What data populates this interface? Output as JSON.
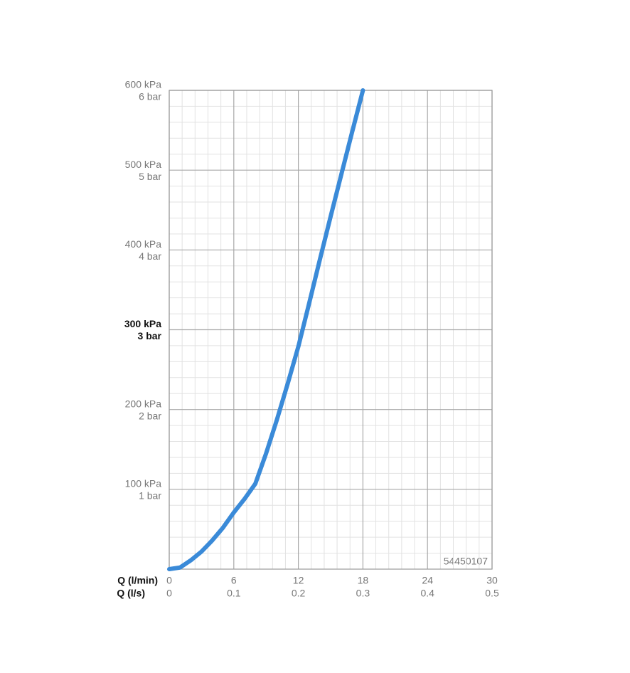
{
  "chart_data": {
    "type": "line",
    "x": [
      0,
      1,
      2,
      3,
      4,
      5,
      6,
      7,
      8,
      9,
      10,
      11,
      12,
      13,
      14,
      15,
      16,
      17,
      18
    ],
    "series": [
      {
        "color": "#3a8ad8",
        "values": [
          0,
          2,
          11,
          22,
          36,
          52,
          71,
          88,
          107,
          145,
          187,
          232,
          279,
          333,
          388,
          442,
          495,
          548,
          600
        ]
      }
    ],
    "xlim": [
      0,
      30
    ],
    "ylim": [
      0,
      600
    ],
    "xticks": [
      0,
      6,
      12,
      18,
      24,
      30
    ],
    "xticks_ls": [
      {
        "value": 0,
        "label": "0"
      },
      {
        "value": 6,
        "label": "0.1"
      },
      {
        "value": 12,
        "label": "0.2"
      },
      {
        "value": 18,
        "label": "0.3"
      },
      {
        "value": 24,
        "label": "0.4"
      },
      {
        "value": 30,
        "label": "0.5"
      }
    ],
    "xlabel": "Q (l/min)",
    "xlabel2": "Q (l/s)",
    "yticks": [
      {
        "value": 100,
        "label": "100 kPa"
      },
      {
        "value": 200,
        "label": "200 kPa"
      },
      {
        "value": 300,
        "label": "300 kPa",
        "bold": true
      },
      {
        "value": 400,
        "label": "400 kPa"
      },
      {
        "value": 500,
        "label": "500 kPa"
      },
      {
        "value": 600,
        "label": "600 kPa"
      }
    ],
    "yticks_bar": [
      {
        "value": 100,
        "label": "1 bar"
      },
      {
        "value": 200,
        "label": "2 bar"
      },
      {
        "value": 300,
        "label": "3 bar",
        "bold": true
      },
      {
        "value": 400,
        "label": "4 bar"
      },
      {
        "value": 500,
        "label": "5 bar"
      },
      {
        "value": 600,
        "label": "6 bar"
      }
    ],
    "annotation": "54450107",
    "grid": true,
    "minor_grid": true
  }
}
